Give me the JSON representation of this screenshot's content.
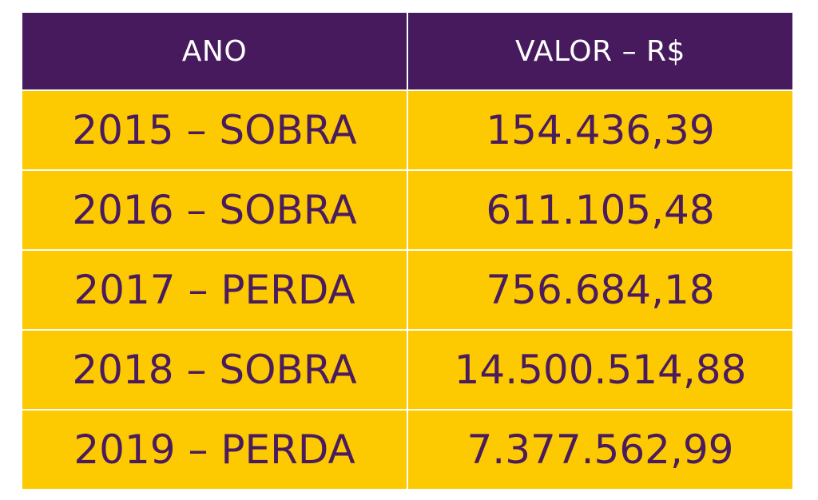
{
  "table": {
    "headers": [
      "ANO",
      "VALOR – R$"
    ],
    "rows": [
      {
        "ano": "2015 – SOBRA",
        "valor": "154.436,39"
      },
      {
        "ano": "2016 – SOBRA",
        "valor": "611.105,48"
      },
      {
        "ano": "2017 – PERDA",
        "valor": "756.684,18"
      },
      {
        "ano": "2018 – SOBRA",
        "valor": "14.500.514,88"
      },
      {
        "ano": "2019 – PERDA",
        "valor": "7.377.562,99"
      }
    ]
  },
  "colors": {
    "header_bg": "#461a5c",
    "header_text": "#ffffff",
    "row_bg": "#fdc900",
    "row_text": "#4a1c5e"
  }
}
